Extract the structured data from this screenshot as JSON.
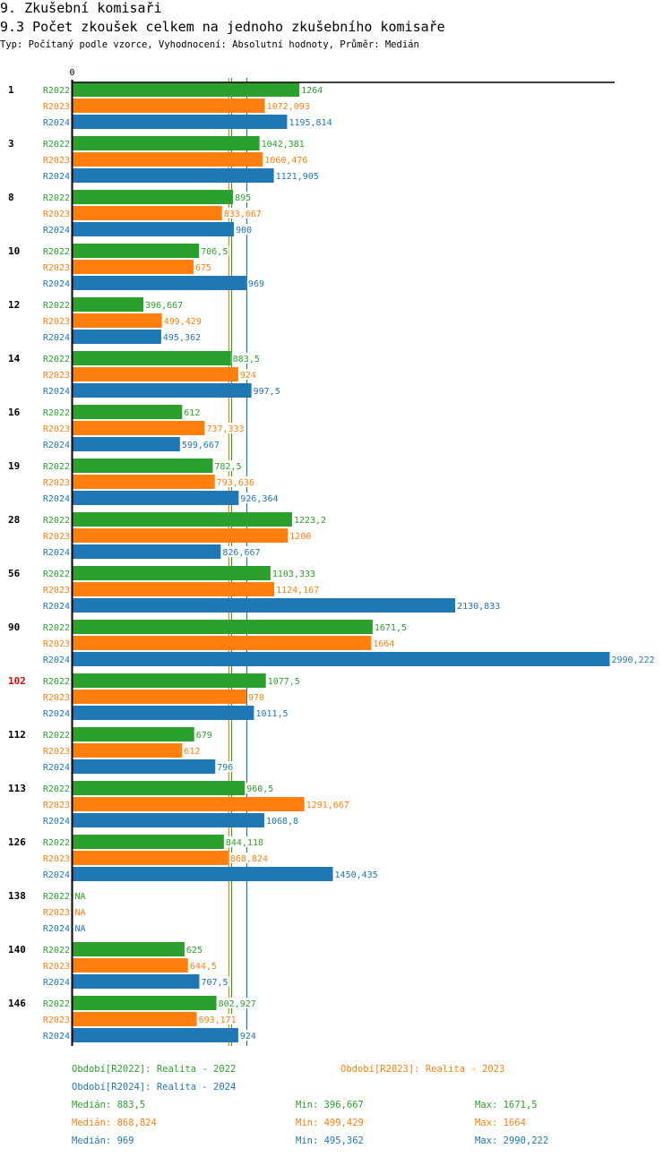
{
  "header": {
    "title": "9. Zkušební komisaři",
    "subtitle": "9.3 Počet zkoušek celkem na jednoho zkušebního komisaře",
    "type_line": "Typ: Počítaný podle vzorce, Vyhodnocení: Absolutní hodnoty, Průměr: Medián"
  },
  "colors": {
    "R2022": "#2ca02c",
    "R2023": "#ff7f0e",
    "R2024": "#1f77b4",
    "highlight_group": "#e60000",
    "axis": "#000000"
  },
  "chart_data": {
    "type": "bar",
    "orientation": "horizontal",
    "title": "9.3 Počet zkoušek celkem na jednoho zkušebního komisaře",
    "xlabel": "",
    "ylabel": "",
    "x_tick_labels": [
      "0"
    ],
    "xlim": [
      0,
      2990.222
    ],
    "grid": false,
    "categories": [
      "1",
      "3",
      "8",
      "10",
      "12",
      "14",
      "16",
      "19",
      "28",
      "56",
      "90",
      "102",
      "112",
      "113",
      "126",
      "138",
      "140",
      "146"
    ],
    "highlighted_category": "102",
    "series": [
      {
        "name": "R2022",
        "values": [
          1264,
          1042.381,
          895,
          706.5,
          396.667,
          883.5,
          612,
          782.5,
          1223.2,
          1103.333,
          1671.5,
          1077.5,
          679,
          960.5,
          844.118,
          null,
          625,
          802.927
        ],
        "labels": [
          "1264",
          "1042,381",
          "895",
          "706,5",
          "396,667",
          "883,5",
          "612",
          "782,5",
          "1223,2",
          "1103,333",
          "1671,5",
          "1077,5",
          "679",
          "960,5",
          "844,118",
          "NA",
          "625",
          "802,927"
        ]
      },
      {
        "name": "R2023",
        "values": [
          1072.093,
          1060.476,
          833.667,
          675,
          499.429,
          924,
          737.333,
          793.636,
          1200,
          1124.167,
          1664,
          970,
          612,
          1291.667,
          868.824,
          null,
          644.5,
          693.171
        ],
        "labels": [
          "1072,093",
          "1060,476",
          "833,667",
          "675",
          "499,429",
          "924",
          "737,333",
          "793,636",
          "1200",
          "1124,167",
          "1664",
          "970",
          "612",
          "1291,667",
          "868,824",
          "NA",
          "644,5",
          "693,171"
        ]
      },
      {
        "name": "R2024",
        "values": [
          1195.814,
          1121.905,
          900,
          969,
          495.362,
          997.5,
          599.667,
          926.364,
          826.667,
          2130.833,
          2990.222,
          1011.5,
          796,
          1068.8,
          1450.435,
          null,
          707.5,
          924
        ],
        "labels": [
          "1195,814",
          "1121,905",
          "900",
          "969",
          "495,362",
          "997,5",
          "599,667",
          "926,364",
          "826,667",
          "2130,833",
          "2990,222",
          "1011,5",
          "796",
          "1068,8",
          "1450,435",
          "NA",
          "707,5",
          "924"
        ]
      }
    ],
    "reference_lines": [
      {
        "series": "R2022",
        "type": "median",
        "value": 883.5
      },
      {
        "series": "R2023",
        "type": "median",
        "value": 868.824
      },
      {
        "series": "R2024",
        "type": "median",
        "value": 969
      }
    ]
  },
  "legend": {
    "periods": [
      {
        "key": "R2022",
        "text": "Období[R2022]: Realita - 2022"
      },
      {
        "key": "R2023",
        "text": "Období[R2023]: Realita - 2023"
      },
      {
        "key": "R2024",
        "text": "Období[R2024]: Realita - 2024"
      }
    ],
    "stats": [
      {
        "key": "R2022",
        "median": "Medián: 883,5",
        "min": "Min: 396,667",
        "max": "Max: 1671,5"
      },
      {
        "key": "R2023",
        "median": "Medián: 868,824",
        "min": "Min: 499,429",
        "max": "Max: 1664"
      },
      {
        "key": "R2024",
        "median": "Medián: 969",
        "min": "Min: 495,362",
        "max": "Max: 2990,222"
      }
    ]
  }
}
